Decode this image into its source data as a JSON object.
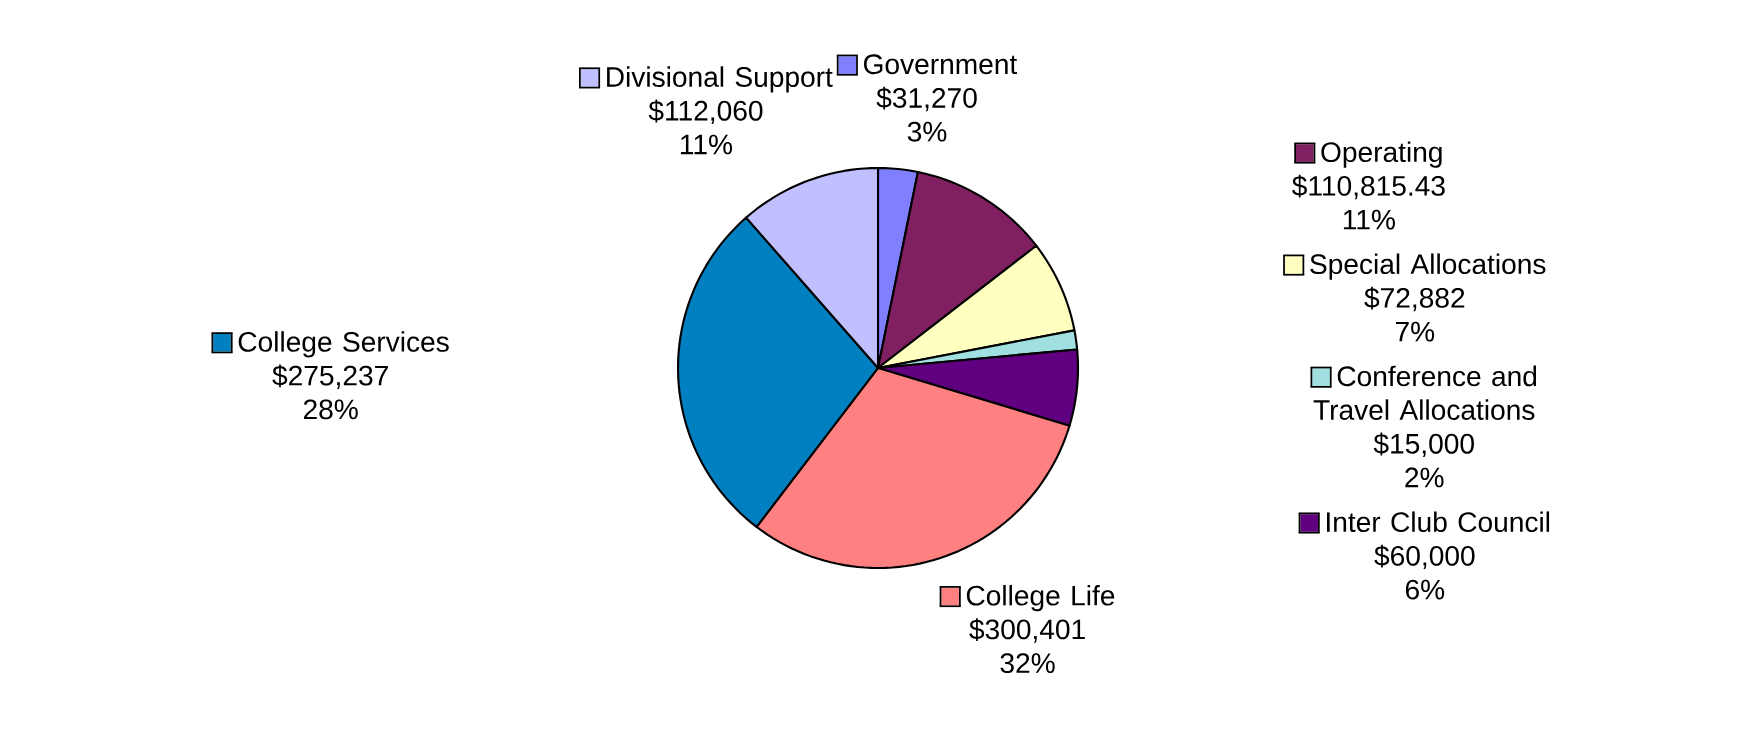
{
  "chart_data": {
    "type": "pie",
    "categories": [
      "Government",
      "Operating",
      "Special Allocations",
      "Conference and Travel Allocations",
      "Inter Club Council",
      "College Life",
      "College Services",
      "Divisional Support"
    ],
    "values": [
      31270,
      110815.43,
      72882,
      15000,
      60000,
      300401,
      275237,
      112060
    ],
    "value_labels": [
      "$31,270 3%",
      "$110,815.43 11%",
      "$72,882 7%",
      "$15,000 2%",
      "$60,000 6%",
      "$300,401 32%",
      "$275,237 28%",
      "$112,060 11%"
    ],
    "colors": [
      "#8080ff",
      "#802060",
      "#ffffc0",
      "#a0e0e0",
      "#600080",
      "#ff8080",
      "#0080c0",
      "#c0c0ff"
    ],
    "legend": true
  }
}
